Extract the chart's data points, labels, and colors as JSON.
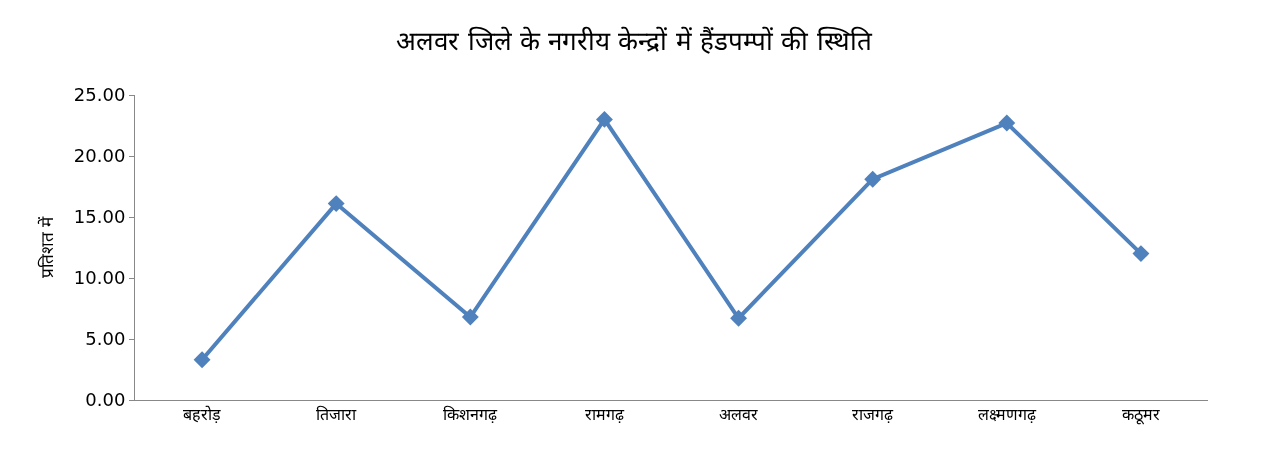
{
  "chart_data": {
    "type": "line",
    "title": "अलवर जिले के नगरीय केन्द्रों में हैंडपम्पों की स्थिति",
    "ylabel": "प्रतिशत में",
    "categories": [
      "बहरोड़",
      "तिजारा",
      "किशनगढ़",
      "रामगढ़",
      "अलवर",
      "राजगढ़",
      "लक्ष्मणगढ़",
      "कठूमर"
    ],
    "series": [
      {
        "color": "#4f81bd",
        "values": [
          3.3,
          16.1,
          6.8,
          23.0,
          6.7,
          18.1,
          22.7,
          12.0
        ]
      }
    ],
    "ylim": [
      0,
      25
    ],
    "yticks": [
      {
        "value": 0,
        "label": "0.00"
      },
      {
        "value": 5,
        "label": "5.00"
      },
      {
        "value": 10,
        "label": "10.00"
      },
      {
        "value": 15,
        "label": "15.00"
      },
      {
        "value": 20,
        "label": "20.00"
      },
      {
        "value": 25,
        "label": "25.00"
      }
    ],
    "marker": "diamond",
    "line_style": "solid"
  }
}
